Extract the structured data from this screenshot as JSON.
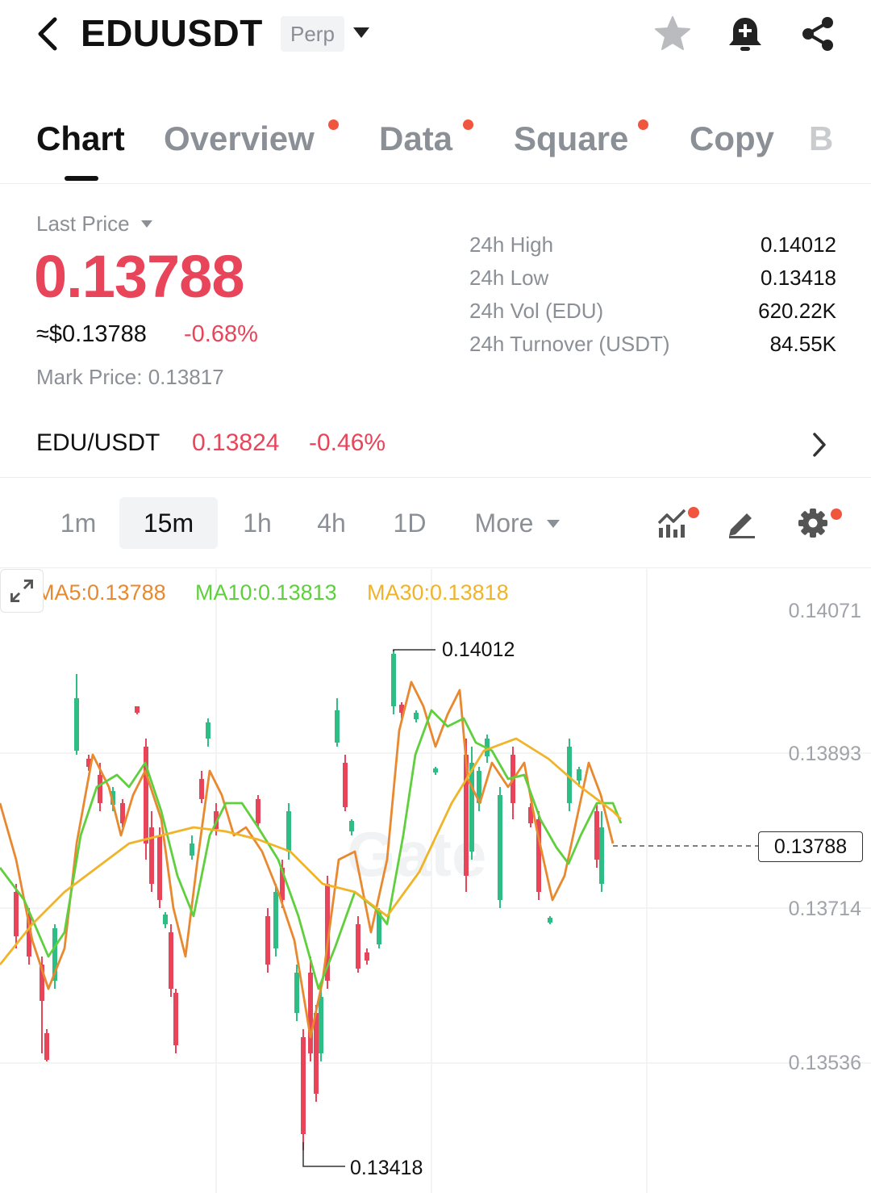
{
  "header": {
    "symbol": "EDUUSDT",
    "contract_type": "Perp",
    "icons": [
      "back-icon",
      "star-icon",
      "bell-plus-icon",
      "share-icon"
    ]
  },
  "tabs": [
    {
      "label": "Chart",
      "active": true,
      "dot": false
    },
    {
      "label": "Overview",
      "active": false,
      "dot": true
    },
    {
      "label": "Data",
      "active": false,
      "dot": true
    },
    {
      "label": "Square",
      "active": false,
      "dot": true
    },
    {
      "label": "Copy",
      "active": false,
      "dot": false
    },
    {
      "label": "B",
      "active": false,
      "dot": false
    }
  ],
  "price": {
    "last_price_label": "Last Price",
    "last_price": "0.13788",
    "usd_value": "≈$0.13788",
    "change_pct": "-0.68%",
    "mark_price_label": "Mark Price:",
    "mark_price": "0.13817"
  },
  "stats": [
    {
      "label": "24h High",
      "value": "0.14012"
    },
    {
      "label": "24h Low",
      "value": "0.13418"
    },
    {
      "label": "24h Vol (EDU)",
      "value": "620.22K"
    },
    {
      "label": "24h Turnover (USDT)",
      "value": "84.55K"
    }
  ],
  "spot": {
    "pair": "EDU/USDT",
    "price": "0.13824",
    "change_pct": "-0.46%"
  },
  "timeframes": {
    "items": [
      "1m",
      "15m",
      "1h",
      "4h",
      "1D"
    ],
    "active": "15m",
    "more_label": "More",
    "tool_icons": [
      "indicator-icon",
      "draw-pen-icon",
      "settings-gear-icon"
    ]
  },
  "chart": {
    "ma_legend": {
      "ma5": "MA5:0.13788",
      "ma10": "MA10:0.13813",
      "ma30": "MA30:0.13818"
    },
    "axis_labels": [
      "0.14071",
      "0.13893",
      "0.13714",
      "0.13536"
    ],
    "current_price": "0.13788",
    "high_marker": "0.14012",
    "low_marker": "0.13418",
    "watermark": "Gate"
  },
  "colors": {
    "up": "#2ebd85",
    "down": "#e8445a",
    "ma5": "#e8892f",
    "ma10": "#5fcf3e",
    "ma30": "#f0b429",
    "accent_dot": "#f0553d"
  }
}
